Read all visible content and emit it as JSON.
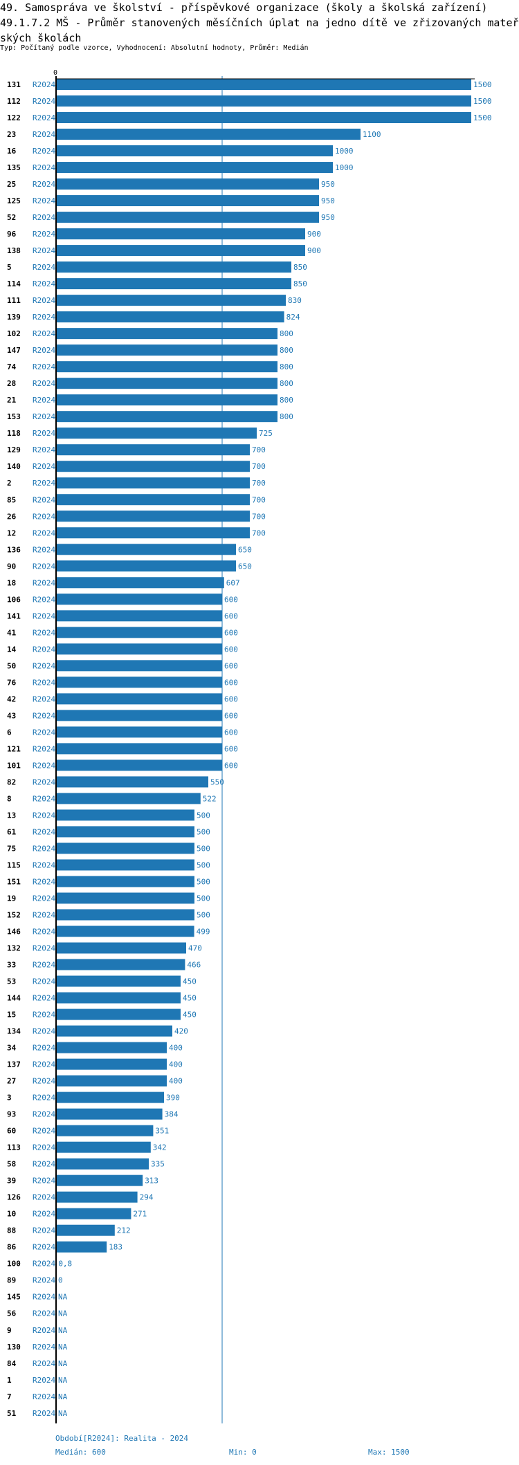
{
  "header": {
    "title": "49. Samospráva ve školství - příspěvkové organizace (školy a školská zařízení)",
    "subtitle": "49.1.7.2 MŠ - Průměr stanovených měsíčních úplat na jedno dítě ve zřizovaných mateřských školách",
    "info": "Typ: Počítaný podle vzorce, Vyhodnocení: Absolutní hodnoty, Průměr: Medián"
  },
  "chart_data": {
    "type": "bar",
    "orientation": "horizontal",
    "axis_zero_label": "0",
    "xlim": [
      0,
      1500
    ],
    "median": 600,
    "period": "R2024",
    "bar_color": "#1f77b4",
    "categories": [
      "131",
      "112",
      "122",
      "23",
      "16",
      "135",
      "25",
      "125",
      "52",
      "96",
      "138",
      "5",
      "114",
      "111",
      "139",
      "102",
      "147",
      "74",
      "28",
      "21",
      "153",
      "118",
      "129",
      "140",
      "2",
      "85",
      "26",
      "12",
      "136",
      "90",
      "18",
      "106",
      "141",
      "41",
      "14",
      "50",
      "76",
      "42",
      "43",
      "6",
      "121",
      "101",
      "82",
      "8",
      "13",
      "61",
      "75",
      "115",
      "151",
      "19",
      "152",
      "146",
      "132",
      "33",
      "53",
      "144",
      "15",
      "134",
      "34",
      "137",
      "27",
      "3",
      "93",
      "60",
      "113",
      "58",
      "39",
      "126",
      "10",
      "88",
      "86",
      "100",
      "89",
      "145",
      "56",
      "9",
      "130",
      "84",
      "1",
      "7",
      "51"
    ],
    "values": [
      1500,
      1500,
      1500,
      1100,
      1000,
      1000,
      950,
      950,
      950,
      900,
      900,
      850,
      850,
      830,
      824,
      800,
      800,
      800,
      800,
      800,
      800,
      725,
      700,
      700,
      700,
      700,
      700,
      700,
      650,
      650,
      607,
      600,
      600,
      600,
      600,
      600,
      600,
      600,
      600,
      600,
      600,
      600,
      550,
      522,
      500,
      500,
      500,
      500,
      500,
      500,
      500,
      499,
      470,
      466,
      450,
      450,
      450,
      420,
      400,
      400,
      400,
      390,
      384,
      351,
      342,
      335,
      313,
      294,
      271,
      212,
      183,
      0.8,
      0,
      null,
      null,
      null,
      null,
      null,
      null,
      null,
      null
    ],
    "value_labels": [
      "1500",
      "1500",
      "1500",
      "1100",
      "1000",
      "1000",
      "950",
      "950",
      "950",
      "900",
      "900",
      "850",
      "850",
      "830",
      "824",
      "800",
      "800",
      "800",
      "800",
      "800",
      "800",
      "725",
      "700",
      "700",
      "700",
      "700",
      "700",
      "700",
      "650",
      "650",
      "607",
      "600",
      "600",
      "600",
      "600",
      "600",
      "600",
      "600",
      "600",
      "600",
      "600",
      "600",
      "550",
      "522",
      "500",
      "500",
      "500",
      "500",
      "500",
      "500",
      "500",
      "499",
      "470",
      "466",
      "450",
      "450",
      "450",
      "420",
      "400",
      "400",
      "400",
      "390",
      "384",
      "351",
      "342",
      "335",
      "313",
      "294",
      "271",
      "212",
      "183",
      "0,8",
      "0",
      "NA",
      "NA",
      "NA",
      "NA",
      "NA",
      "NA",
      "NA",
      "NA"
    ]
  },
  "footer": {
    "period_legend": "Období[R2024]: Realita - 2024",
    "median": "Medián: 600",
    "min": "Min: 0",
    "max": "Max: 1500"
  }
}
